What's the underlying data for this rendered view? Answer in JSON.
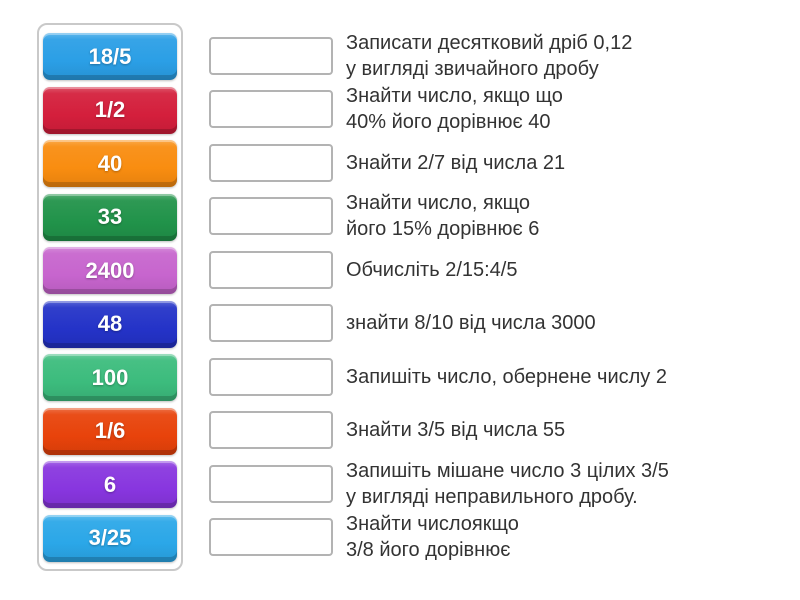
{
  "page": {
    "background_color": "#ffffff",
    "panel_border_color": "#c9c9c9",
    "slot_border_color": "#b3b3b3",
    "question_text_color": "#333333",
    "tile_text_color": "#ffffff"
  },
  "tiles_panel": {
    "tiles": [
      {
        "label": "18/5",
        "color": "#2B9FE6"
      },
      {
        "label": "1/2",
        "color": "#D41F3C"
      },
      {
        "label": "40",
        "color": "#F98D10"
      },
      {
        "label": "33",
        "color": "#21934A"
      },
      {
        "label": "2400",
        "color": "#C765CE"
      },
      {
        "label": "48",
        "color": "#2433C8"
      },
      {
        "label": "100",
        "color": "#3CBC7D"
      },
      {
        "label": "1/6",
        "color": "#E8430B"
      },
      {
        "label": "6",
        "color": "#8836DF"
      },
      {
        "label": "3/25",
        "color": "#2BA7E8"
      }
    ]
  },
  "match_rows": [
    {
      "question_lines": [
        "Записати десятковий дріб 0,12",
        "у вигляді звичайного дробу"
      ]
    },
    {
      "question_lines": [
        "Знайти число, якщо що",
        "40% його дорівнює 40"
      ]
    },
    {
      "question_lines": [
        "Знайти 2/7 від числа 21"
      ]
    },
    {
      "question_lines": [
        "Знайти число, якщо",
        "його 15% дорівнює 6"
      ]
    },
    {
      "question_lines": [
        "Обчисліть 2/15:4/5"
      ]
    },
    {
      "question_lines": [
        "знайти 8/10 від числа 3000"
      ]
    },
    {
      "question_lines": [
        "Запишіть число, обернене числу 2"
      ]
    },
    {
      "question_lines": [
        "Знайти 3/5 від числа 55"
      ]
    },
    {
      "question_lines": [
        "Запишіть мішане число 3 цілих 3/5",
        "у вигляді неправильного дробу."
      ]
    },
    {
      "question_lines": [
        "Знайти числоякщо",
        "3/8 його дорівнює"
      ]
    }
  ]
}
